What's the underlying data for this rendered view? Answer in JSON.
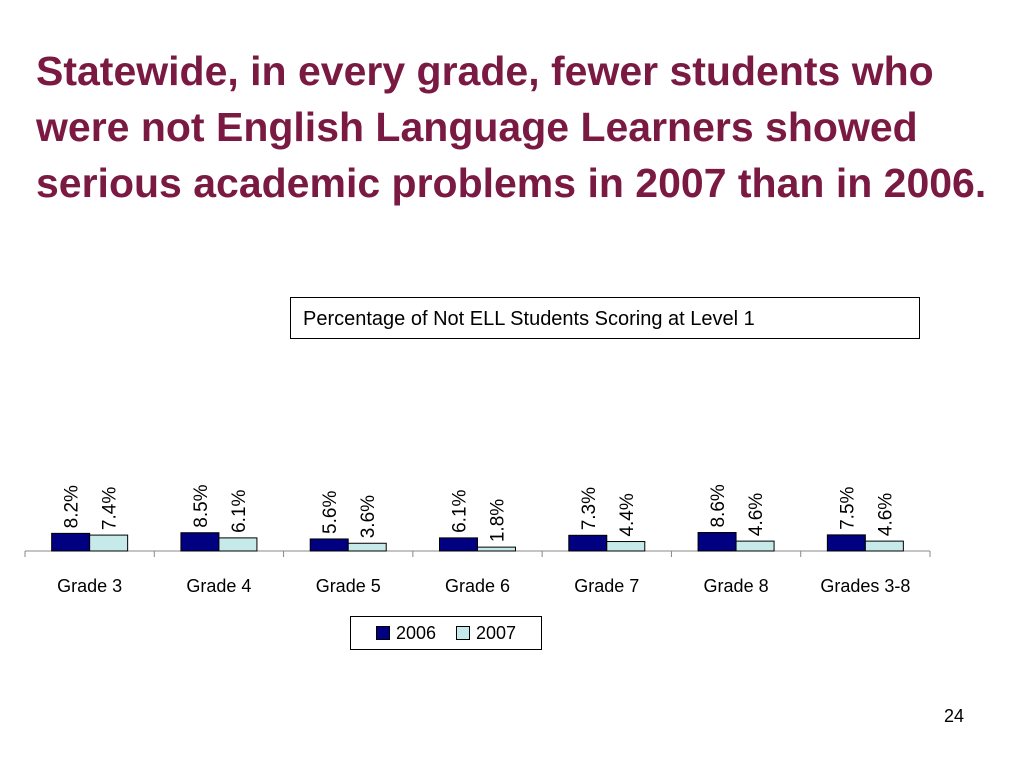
{
  "slide": {
    "title": "Statewide, in every grade, fewer students who were not English Language Learners showed serious academic problems in 2007 than in 2006.",
    "page_number": "24"
  },
  "chart_data": {
    "type": "bar",
    "title": "Percentage of Not ELL Students Scoring at Level 1",
    "categories": [
      "Grade 3",
      "Grade 4",
      "Grade 5",
      "Grade 6",
      "Grade 7",
      "Grade 8",
      "Grades 3-8"
    ],
    "series": [
      {
        "name": "2006",
        "color": "#000080",
        "values": [
          8.2,
          8.5,
          5.6,
          6.1,
          7.3,
          8.6,
          7.5
        ],
        "labels": [
          "8.2%",
          "8.5%",
          "5.6%",
          "6.1%",
          "7.3%",
          "8.6%",
          "7.5%"
        ]
      },
      {
        "name": "2007",
        "color": "#c6e9ea",
        "values": [
          7.4,
          6.1,
          3.6,
          1.8,
          4.4,
          4.6,
          4.6
        ],
        "labels": [
          "7.4%",
          "6.1%",
          "3.6%",
          "1.8%",
          "4.4%",
          "4.6%",
          "4.6%"
        ]
      }
    ],
    "xlabel": "",
    "ylabel": "",
    "grid": false,
    "legend": "bottom"
  }
}
